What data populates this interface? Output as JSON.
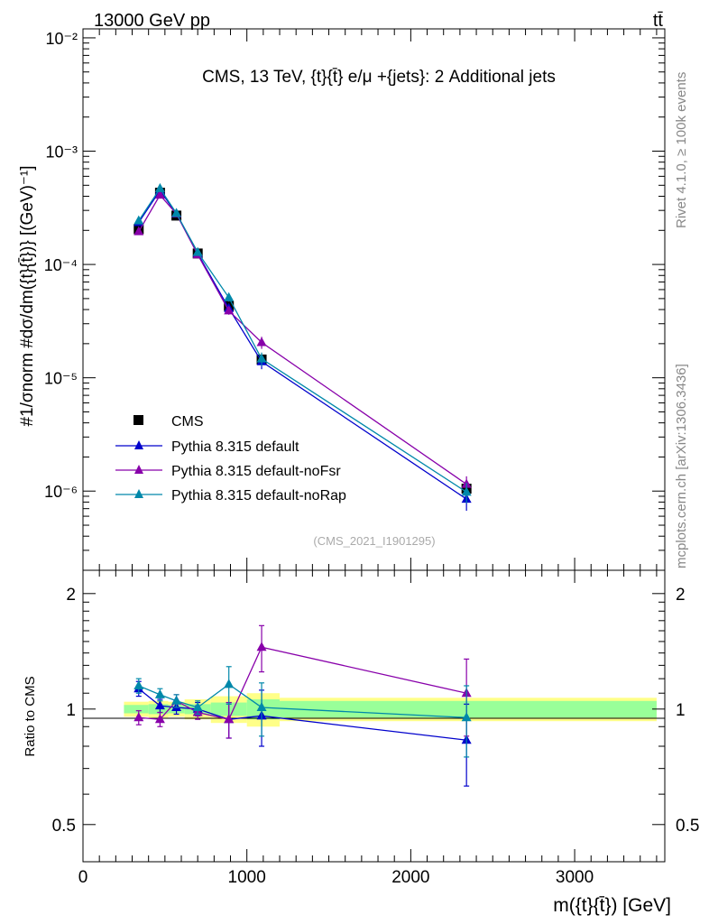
{
  "header": {
    "beam": "13000 GeV pp",
    "process": "tt̄"
  },
  "side": {
    "rivet": "Rivet 4.1.0, ≥ 100k events",
    "mcplots": "mcplots.cern.ch [arXiv:1306.3436]"
  },
  "colors": {
    "cms": "#000000",
    "default": "#0000cc",
    "noFsr": "#8800aa",
    "noRap": "#0088aa",
    "band_inner": "#99ff99",
    "band_outer": "#ffff88"
  },
  "chart_data": [
    {
      "type": "line",
      "title": "CMS, 13 TeV, {t}{t̄} e/μ +{jets}: 2 Additional jets",
      "analysis_tag": "(CMS_2021_I1901295)",
      "ylabel_text": "#1/σnorm #dσ/dm({t}{t̄})} [(GeV)⁻¹]",
      "yscale": "log",
      "ylim": [
        2e-07,
        0.012
      ],
      "xlim": [
        0,
        3550
      ],
      "yticks": [
        {
          "v": 0.01,
          "label": "10⁻²"
        },
        {
          "v": 0.001,
          "label": "10⁻³"
        },
        {
          "v": 0.0001,
          "label": "10⁻⁴"
        },
        {
          "v": 1e-05,
          "label": "10⁻⁵"
        },
        {
          "v": 1e-06,
          "label": "10⁻⁶"
        }
      ],
      "legend_position": "bottom-left",
      "series": [
        {
          "name": "CMS",
          "key": "cms",
          "marker": "square",
          "x": [
            340,
            470,
            570,
            700,
            890,
            1090,
            2340
          ],
          "y": [
            0.000205,
            0.00043,
            0.00027,
            0.000125,
            4.3e-05,
            1.45e-05,
            1.05e-06
          ],
          "err": [
            1.2e-05,
            2e-05,
            1.3e-05,
            6e-06,
            2.5e-06,
            1.5e-06,
            1e-07
          ]
        },
        {
          "name": "Pythia 8.315 default",
          "key": "default",
          "marker": "triangle",
          "x": [
            340,
            470,
            570,
            700,
            890,
            1090,
            2340
          ],
          "y": [
            0.000235,
            0.00045,
            0.00028,
            0.000125,
            4.1e-05,
            1.39e-05,
            8.5e-07
          ],
          "err": [
            8e-06,
            1e-05,
            8e-06,
            4e-06,
            3e-06,
            2e-06,
            1.8e-07
          ]
        },
        {
          "name": "Pythia 8.315 default-noFsr",
          "key": "noFsr",
          "marker": "triangle",
          "x": [
            340,
            470,
            570,
            700,
            890,
            1090,
            2340
          ],
          "y": [
            0.000195,
            0.00041,
            0.00028,
            0.000122,
            3.9e-05,
            2.05e-05,
            1.15e-06
          ],
          "err": [
            8e-06,
            1e-05,
            8e-06,
            4e-06,
            3e-06,
            2.5e-06,
            2e-07
          ]
        },
        {
          "name": "Pythia 8.315 default-noRap",
          "key": "noRap",
          "marker": "triangle",
          "x": [
            340,
            470,
            570,
            700,
            890,
            1090,
            2340
          ],
          "y": [
            0.000243,
            0.000468,
            0.000283,
            0.000128,
            5.1e-05,
            1.47e-05,
            9.8e-07
          ],
          "err": [
            8e-06,
            1e-05,
            8e-06,
            4e-06,
            4e-06,
            2e-06,
            2e-07
          ]
        }
      ]
    },
    {
      "type": "line",
      "ylabel": "Ratio to CMS",
      "xlabel": "m({t}{t̄}) [GeV]",
      "ylim": [
        0.4,
        2.3
      ],
      "yscale": "log",
      "xlim": [
        0,
        3550
      ],
      "xticks": [
        0,
        1000,
        2000,
        3000
      ],
      "yticks": [
        {
          "v": 0.5,
          "label": "0.5"
        },
        {
          "v": 1,
          "label": "1"
        },
        {
          "v": 2,
          "label": "2"
        }
      ],
      "bands": {
        "edges": [
          250,
          400,
          520,
          620,
          780,
          1000,
          1200,
          3500
        ],
        "inner": [
          0.025,
          0.03,
          0.025,
          0.03,
          0.04,
          0.06,
          0.05
        ],
        "outer": [
          0.045,
          0.05,
          0.045,
          0.06,
          0.08,
          0.1,
          0.07
        ]
      },
      "series": [
        {
          "name": "Pythia 8.315 default",
          "key": "default",
          "x": [
            340,
            470,
            570,
            700,
            890,
            1090,
            2340
          ],
          "y": [
            1.13,
            1.02,
            1.01,
            1.0,
            0.94,
            0.96,
            0.83
          ],
          "err": [
            0.05,
            0.04,
            0.04,
            0.04,
            0.1,
            0.16,
            0.2
          ]
        },
        {
          "name": "Pythia 8.315 default-noFsr",
          "key": "noFsr",
          "x": [
            340,
            470,
            570,
            700,
            890,
            1090,
            2340
          ],
          "y": [
            0.95,
            0.94,
            1.05,
            0.98,
            0.94,
            1.45,
            1.1
          ],
          "err": [
            0.04,
            0.04,
            0.04,
            0.04,
            0.1,
            0.2,
            0.25
          ]
        },
        {
          "name": "Pythia 8.315 default-noRap",
          "key": "noRap",
          "x": [
            340,
            470,
            570,
            700,
            890,
            1090,
            2340
          ],
          "y": [
            1.15,
            1.09,
            1.05,
            1.01,
            1.16,
            1.01,
            0.95
          ],
          "err": [
            0.05,
            0.04,
            0.04,
            0.04,
            0.13,
            0.16,
            0.2
          ]
        }
      ]
    }
  ]
}
